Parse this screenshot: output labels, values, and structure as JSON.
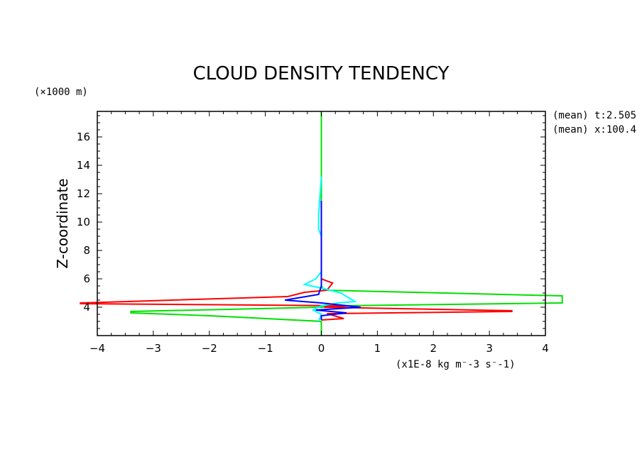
{
  "chart_data": {
    "type": "line",
    "title": "CLOUD DENSITY TENDENCY",
    "ylabel": "Z-coordinate",
    "yunit": "(×1000 m)",
    "xunit": "(x1E-8 kg m⁻-3 s⁻-1)",
    "annotations": [
      "(mean) t:2.505",
      "(mean) x:100.4"
    ],
    "xlim": [
      -4,
      4
    ],
    "ylim": [
      2,
      17.8
    ],
    "xticks": [
      -4,
      -3,
      -2,
      -1,
      0,
      1,
      2,
      3,
      4
    ],
    "yticks": [
      4,
      6,
      8,
      10,
      12,
      14,
      16
    ],
    "series": [
      {
        "color": "#00e000",
        "points": [
          [
            0,
            17.8
          ],
          [
            0,
            5.5
          ],
          [
            0.05,
            5.2
          ],
          [
            4.3,
            4.8
          ],
          [
            4.3,
            4.3
          ],
          [
            0.3,
            4.1
          ],
          [
            0,
            4.0
          ],
          [
            -3.4,
            3.7
          ],
          [
            -3.4,
            3.6
          ],
          [
            -2.0,
            3.4
          ],
          [
            0,
            3.0
          ],
          [
            0,
            2.0
          ]
        ]
      },
      {
        "color": "#ff0000",
        "points": [
          [
            0,
            11
          ],
          [
            0,
            6.0
          ],
          [
            0.2,
            5.7
          ],
          [
            0.1,
            5.2
          ],
          [
            -0.3,
            5.05
          ],
          [
            -0.6,
            4.75
          ],
          [
            -4.3,
            4.3
          ],
          [
            -4.3,
            4.25
          ],
          [
            0.5,
            4.1
          ],
          [
            0.05,
            4.0
          ],
          [
            3.4,
            3.75
          ],
          [
            3.4,
            3.7
          ],
          [
            0.1,
            3.55
          ],
          [
            0.4,
            3.2
          ],
          [
            0,
            3.1
          ]
        ]
      },
      {
        "color": "#00ffff",
        "points": [
          [
            0,
            13.2
          ],
          [
            -0.05,
            10.5
          ],
          [
            -0.05,
            9.5
          ],
          [
            0,
            9.0
          ],
          [
            0,
            6.5
          ],
          [
            -0.1,
            6.0
          ],
          [
            -0.3,
            5.6
          ],
          [
            0.05,
            5.3
          ],
          [
            0.35,
            5.0
          ],
          [
            0.6,
            4.4
          ],
          [
            0.3,
            4.3
          ],
          [
            0,
            4.1
          ],
          [
            -0.15,
            3.8
          ],
          [
            0,
            3.5
          ],
          [
            -0.05,
            3.0
          ]
        ]
      },
      {
        "color": "#0000ff",
        "points": [
          [
            0,
            11.5
          ],
          [
            0,
            5.5
          ],
          [
            -0.05,
            4.9
          ],
          [
            -0.65,
            4.5
          ],
          [
            0,
            4.3
          ],
          [
            0.7,
            4.0
          ],
          [
            -0.1,
            3.8
          ],
          [
            0.45,
            3.6
          ],
          [
            0,
            3.4
          ],
          [
            0,
            3.1
          ]
        ]
      }
    ]
  }
}
